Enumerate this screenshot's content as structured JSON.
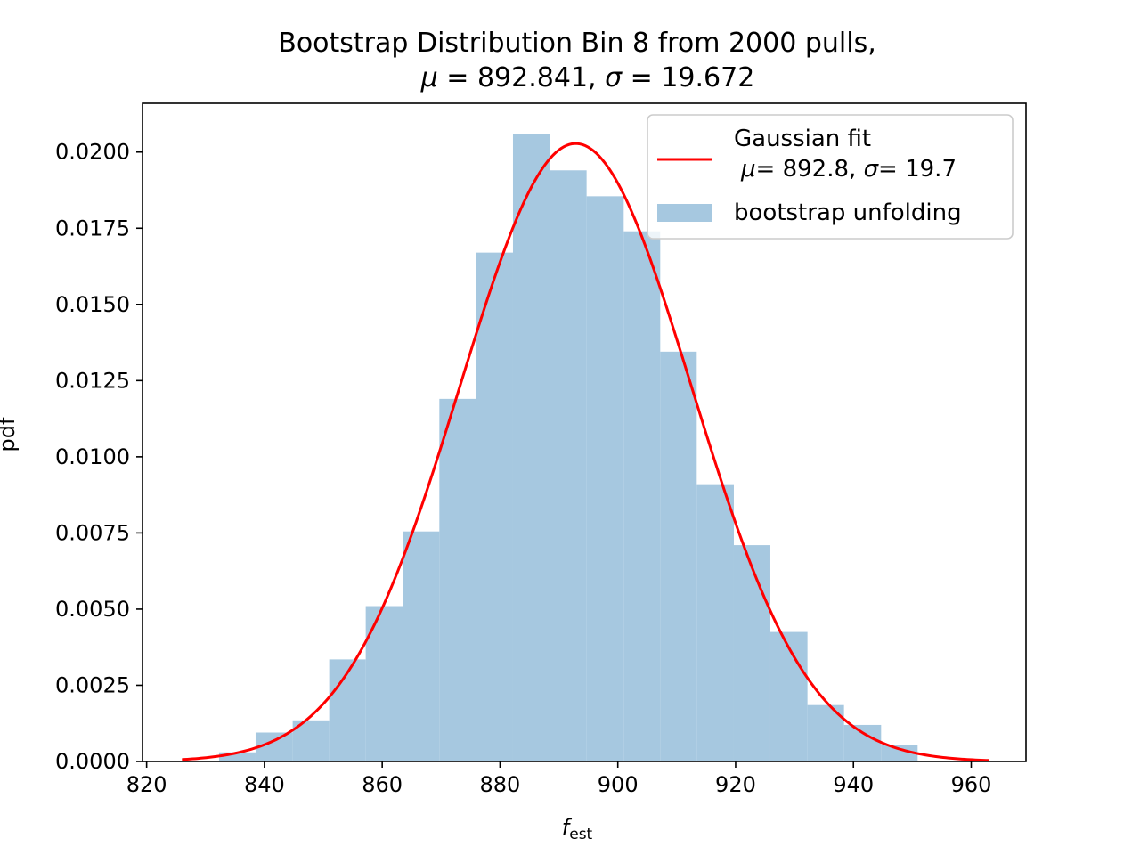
{
  "chart_data": {
    "type": "bar",
    "title_line1": "Bootstrap Distribution  Bin 8 from 2000 pulls,",
    "title_line2": {
      "mu_symbol": "μ",
      "mu_text": " = 892.841, ",
      "sigma_symbol": "σ",
      "sigma_text": " = 19.672"
    },
    "xlabel": {
      "main": "f",
      "subscript": "est"
    },
    "ylabel": "pdf",
    "xlim": [
      819.3,
      969.3
    ],
    "ylim": [
      0,
      0.0216
    ],
    "xticks": [
      820,
      840,
      860,
      880,
      900,
      920,
      940,
      960
    ],
    "yticks": [
      0.0,
      0.0025,
      0.005,
      0.0075,
      0.01,
      0.0125,
      0.015,
      0.0175,
      0.02
    ],
    "ytick_labels": [
      "0.0000",
      "0.0025",
      "0.0050",
      "0.0075",
      "0.0100",
      "0.0125",
      "0.0150",
      "0.0175",
      "0.0200"
    ],
    "histogram": {
      "name": "bootstrap unfolding",
      "color": "#a6c8e0",
      "bin_edges": [
        826.0,
        832.3,
        838.5,
        844.8,
        851.0,
        857.2,
        863.5,
        869.7,
        876.0,
        882.2,
        888.5,
        894.7,
        901.0,
        907.2,
        913.4,
        919.7,
        925.9,
        932.2,
        938.4,
        944.7,
        950.9
      ],
      "values": [
        0.0,
        0.0003,
        0.00095,
        0.00135,
        0.00335,
        0.0051,
        0.00755,
        0.0119,
        0.0167,
        0.0206,
        0.0194,
        0.01855,
        0.0174,
        0.01345,
        0.0091,
        0.0071,
        0.00425,
        0.00185,
        0.0012,
        0.00055
      ]
    },
    "fit": {
      "name_line1": "Gaussian fit",
      "name_line2": {
        "mu_symbol": "μ",
        "mu_text": "= 892.8, ",
        "sigma_symbol": "σ",
        "sigma_text": "= 19.7"
      },
      "mu": 892.841,
      "sigma": 19.672,
      "x_range": [
        826,
        963
      ],
      "color": "#ff0000"
    },
    "legend_position": "top-right",
    "grid": false
  }
}
